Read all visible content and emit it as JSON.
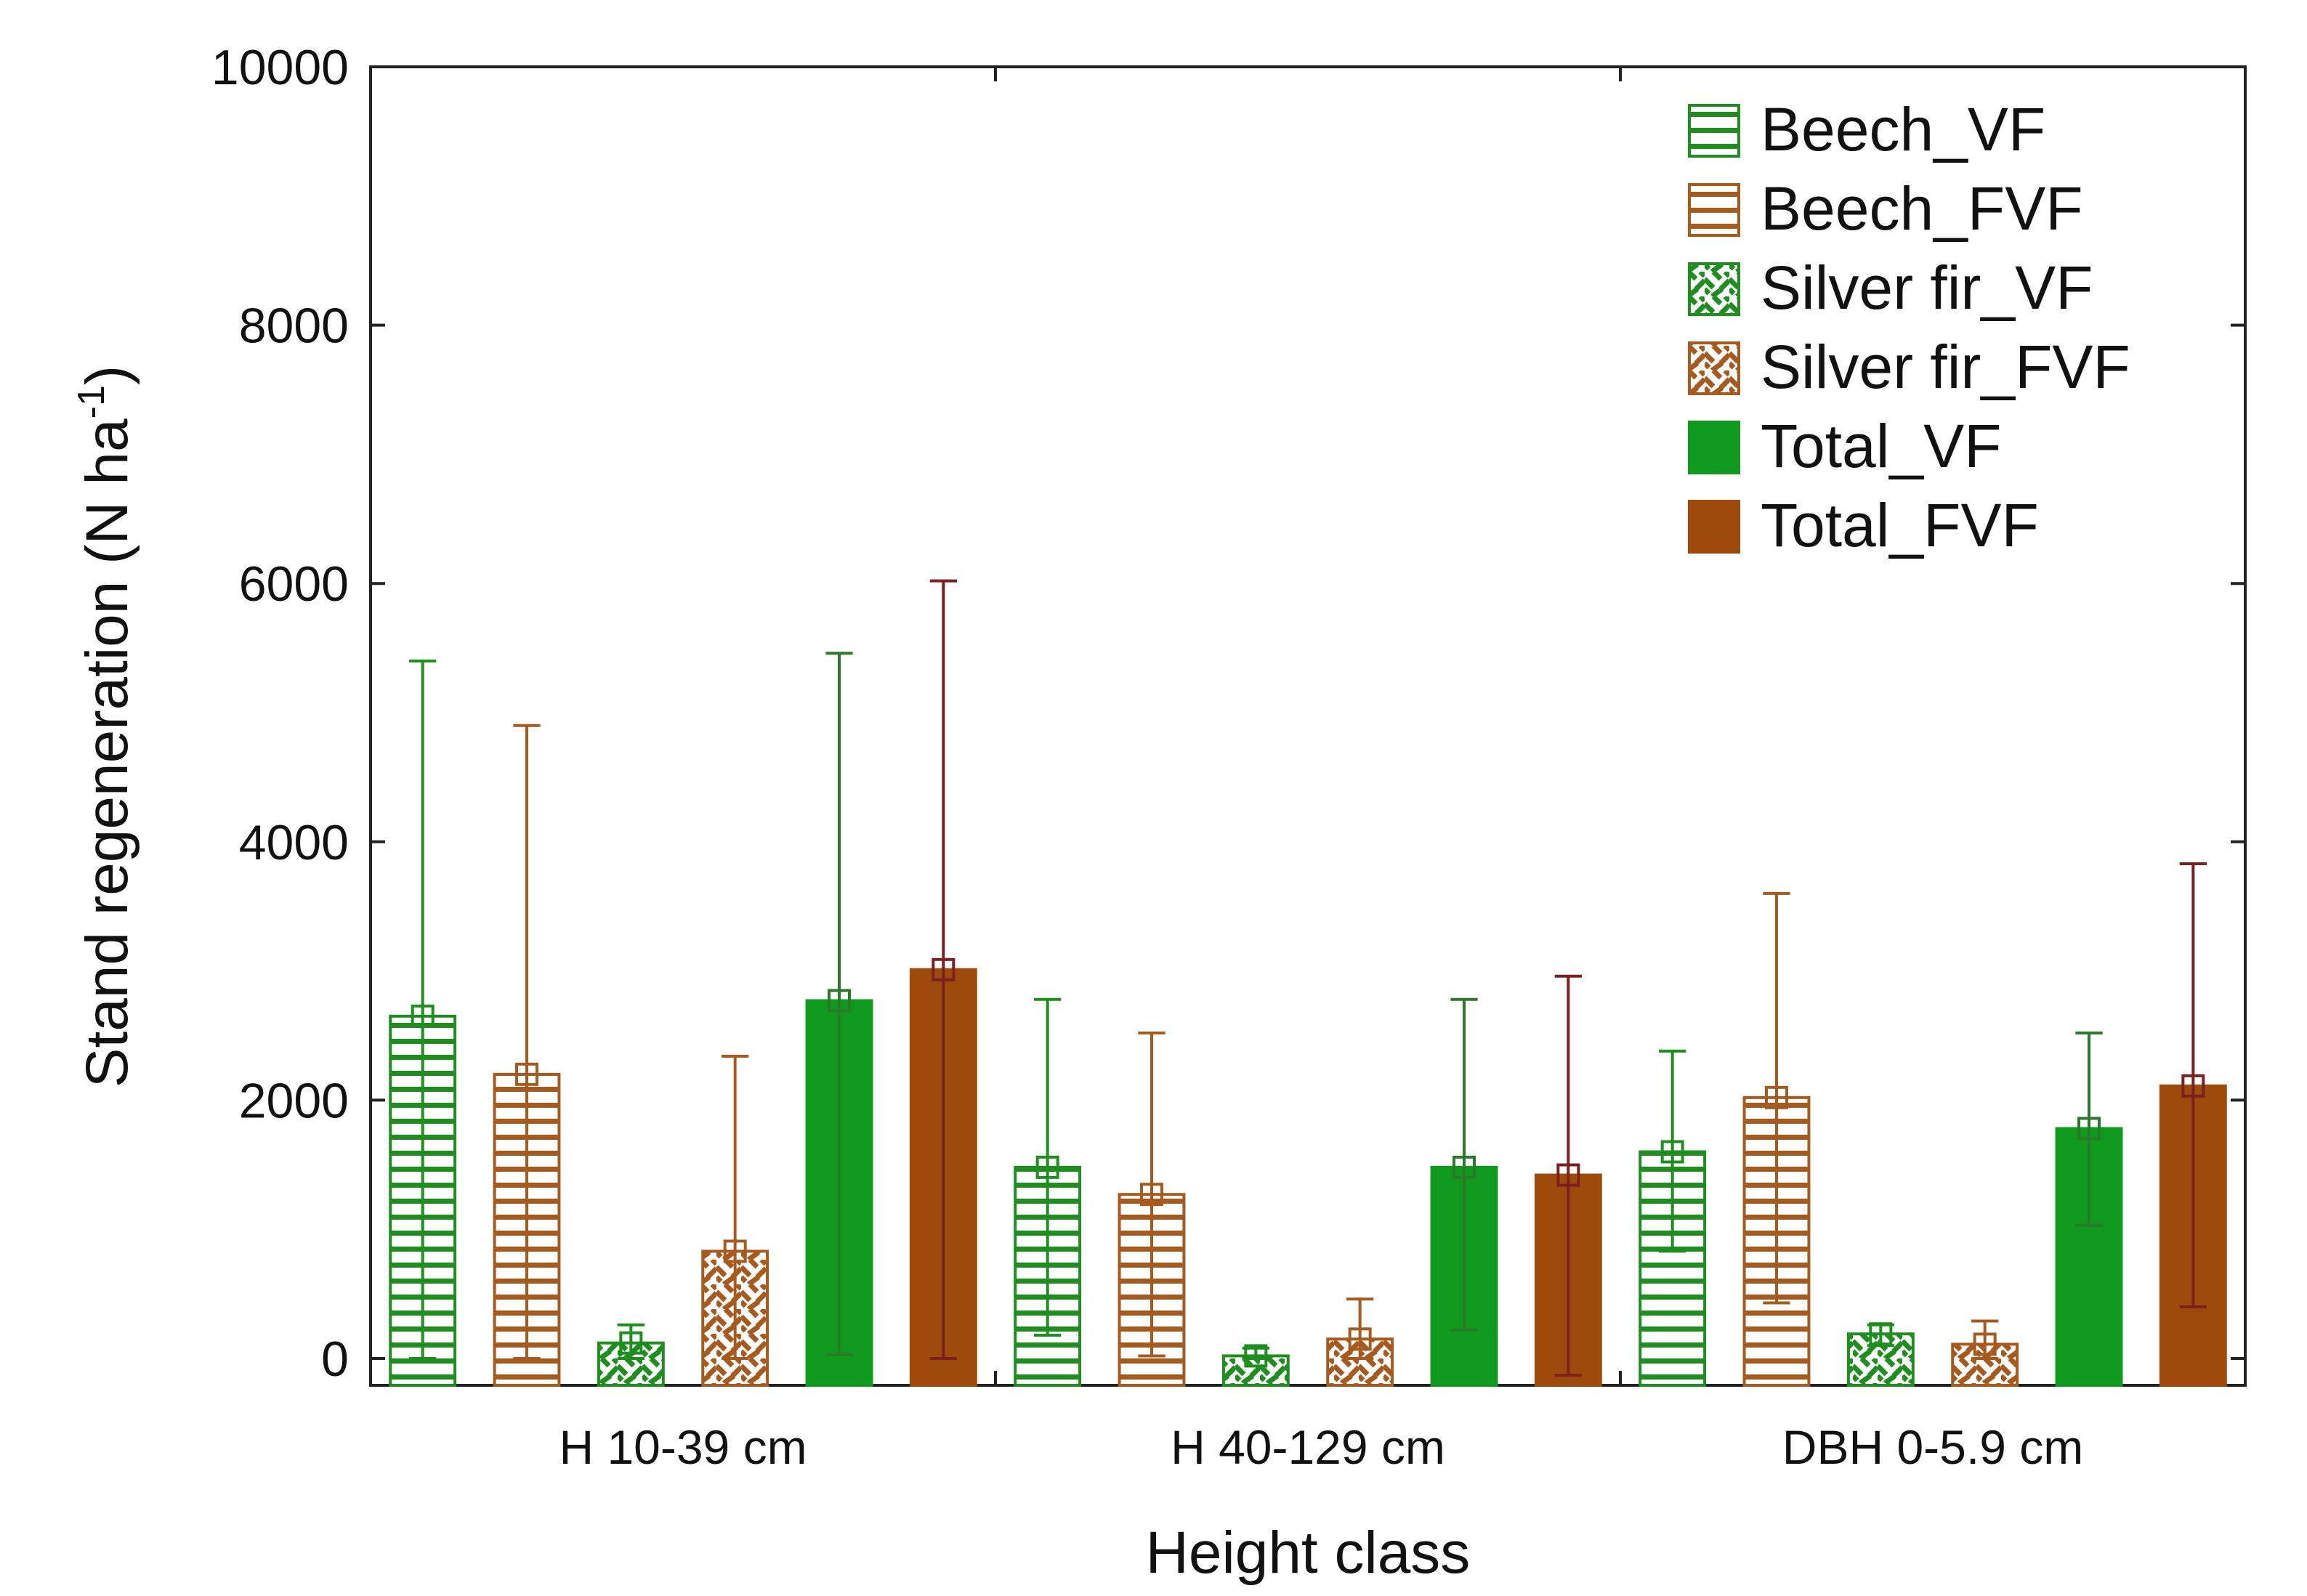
{
  "chart_data": {
    "type": "bar",
    "title": "",
    "xlabel": "Height class",
    "ylabel": "Stand regeneration (N ha",
    "ylabel_sup": "-1",
    "ylabel_close": ")",
    "ylim": [
      0,
      10000
    ],
    "yticks": [
      0,
      2000,
      4000,
      6000,
      8000,
      10000
    ],
    "categories": [
      "H 10-39 cm",
      "H 40-129 cm",
      "DBH 0-5.9 cm"
    ],
    "legend_position": "top-right",
    "series": [
      {
        "name": "Beech_VF",
        "color": "#1e8f1e",
        "pattern": "hstripe",
        "values": [
          2650,
          1480,
          1600
        ],
        "err_low": [
          0,
          180,
          830
        ],
        "err_high": [
          5400,
          2780,
          2380
        ]
      },
      {
        "name": "Beech_FVF",
        "color": "#a65a1e",
        "pattern": "hstripe",
        "values": [
          2200,
          1270,
          2020
        ],
        "err_low": [
          0,
          20,
          430
        ],
        "err_high": [
          4900,
          2520,
          3600
        ]
      },
      {
        "name": "Silver fir_VF",
        "color": "#1e8f1e",
        "pattern": "cross",
        "values": [
          120,
          20,
          190
        ],
        "err_low": [
          0,
          0,
          100
        ],
        "err_high": [
          260,
          80,
          260
        ]
      },
      {
        "name": "Silver fir_FVF",
        "color": "#a65a1e",
        "pattern": "cross",
        "values": [
          830,
          150,
          110
        ],
        "err_low": [
          0,
          0,
          0
        ],
        "err_high": [
          2340,
          460,
          290
        ]
      },
      {
        "name": "Total_VF",
        "color": "#0f9a1e",
        "pattern": "solid",
        "values": [
          2770,
          1480,
          1780
        ],
        "err_low": [
          30,
          220,
          1030
        ],
        "err_high": [
          5460,
          2780,
          2520
        ]
      },
      {
        "name": "Total_FVF",
        "color": "#9e4a0a",
        "pattern": "solid",
        "values": [
          3010,
          1420,
          2110
        ],
        "err_low": [
          0,
          -130,
          400
        ],
        "err_high": [
          6020,
          2960,
          3830
        ]
      }
    ]
  }
}
